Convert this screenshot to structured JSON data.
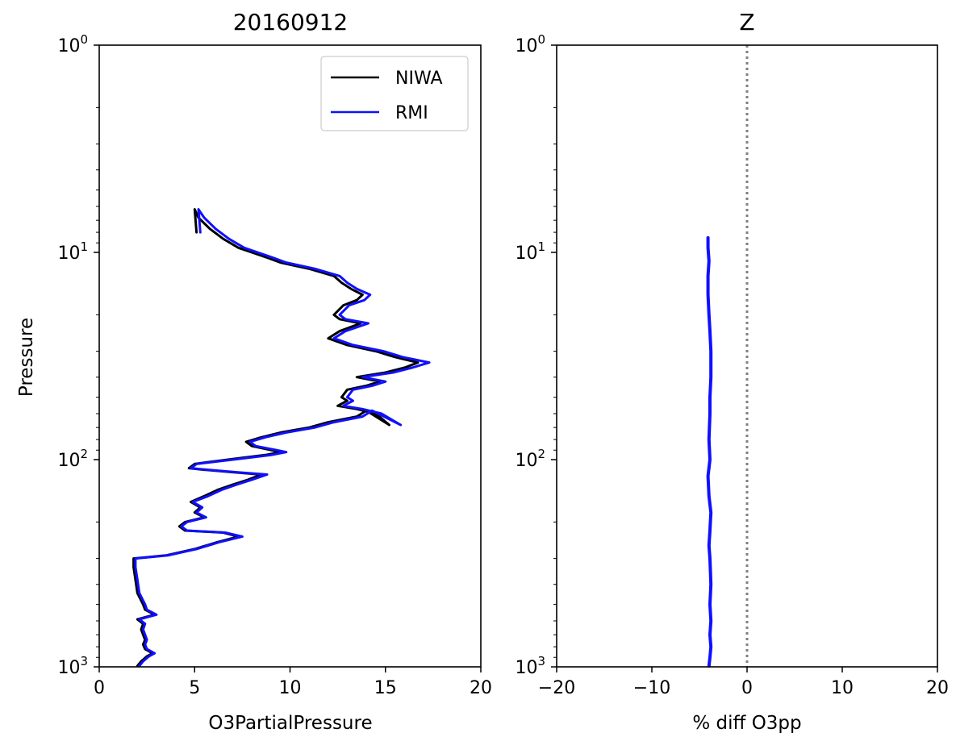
{
  "chart_data": [
    {
      "type": "line",
      "title": "20160912",
      "xlabel": "O3PartialPressure",
      "ylabel": "Pressure",
      "xlim": [
        0,
        20
      ],
      "ylim": [
        1000,
        1
      ],
      "yscale": "log",
      "xticks": [
        "0",
        "5",
        "10",
        "15",
        "20"
      ],
      "yticks": [
        {
          "base": "10",
          "exp": "0"
        },
        {
          "base": "10",
          "exp": "1"
        },
        {
          "base": "10",
          "exp": "2"
        },
        {
          "base": "10",
          "exp": "3"
        }
      ],
      "legend_position": "top-right",
      "series": [
        {
          "name": "NIWA",
          "color": "#000000",
          "points": [
            [
              2.0,
              990
            ],
            [
              2.2,
              940
            ],
            [
              2.5,
              890
            ],
            [
              2.8,
              860
            ],
            [
              2.4,
              820
            ],
            [
              2.3,
              780
            ],
            [
              2.4,
              740
            ],
            [
              2.3,
              700
            ],
            [
              2.2,
              660
            ],
            [
              2.3,
              620
            ],
            [
              2.0,
              590
            ],
            [
              2.9,
              560
            ],
            [
              2.4,
              530
            ],
            [
              2.3,
              500
            ],
            [
              2.0,
              440
            ],
            [
              1.9,
              380
            ],
            [
              1.8,
              330
            ],
            [
              1.8,
              300
            ],
            [
              3.5,
              290
            ],
            [
              5.0,
              270
            ],
            [
              6.2,
              250
            ],
            [
              7.3,
              235
            ],
            [
              6.5,
              225
            ],
            [
              4.5,
              220
            ],
            [
              4.2,
              210
            ],
            [
              4.5,
              200
            ],
            [
              5.5,
              190
            ],
            [
              5.0,
              180
            ],
            [
              5.3,
              170
            ],
            [
              4.8,
              160
            ],
            [
              5.5,
              150
            ],
            [
              6.2,
              140
            ],
            [
              7.0,
              132
            ],
            [
              7.8,
              125
            ],
            [
              8.5,
              118
            ],
            [
              7.0,
              115
            ],
            [
              5.5,
              112
            ],
            [
              4.7,
              110
            ],
            [
              5.0,
              105
            ],
            [
              6.0,
              102
            ],
            [
              7.5,
              98
            ],
            [
              8.7,
              95
            ],
            [
              9.5,
              92
            ],
            [
              9.0,
              90
            ],
            [
              8.0,
              86
            ],
            [
              7.7,
              82
            ],
            [
              8.5,
              78
            ],
            [
              9.5,
              74
            ],
            [
              11.0,
              70
            ],
            [
              12.0,
              66
            ],
            [
              13.5,
              62
            ],
            [
              14.0,
              58
            ],
            [
              15.2,
              68
            ],
            [
              14.5,
              60
            ],
            [
              13.5,
              57
            ],
            [
              12.5,
              55
            ],
            [
              13.0,
              52
            ],
            [
              12.7,
              50
            ],
            [
              13.0,
              46
            ],
            [
              14.0,
              44
            ],
            [
              14.7,
              42
            ],
            [
              13.5,
              40
            ],
            [
              15.0,
              38
            ],
            [
              16.0,
              36
            ],
            [
              16.7,
              34
            ],
            [
              15.5,
              32
            ],
            [
              14.5,
              30
            ],
            [
              13.0,
              28
            ],
            [
              12.0,
              26
            ],
            [
              12.6,
              24
            ],
            [
              13.7,
              22
            ],
            [
              12.6,
              21
            ],
            [
              12.3,
              20
            ],
            [
              12.8,
              18
            ],
            [
              13.5,
              17
            ],
            [
              13.8,
              16
            ],
            [
              13.2,
              15
            ],
            [
              12.7,
              14
            ],
            [
              12.3,
              13
            ],
            [
              11.0,
              12
            ],
            [
              9.5,
              11.2
            ],
            [
              8.8,
              10.6
            ],
            [
              7.3,
              9.5
            ],
            [
              6.5,
              8.6
            ],
            [
              5.8,
              7.7
            ],
            [
              5.2,
              6.8
            ],
            [
              5.0,
              6.2
            ],
            [
              5.1,
              8.0
            ]
          ]
        },
        {
          "name": "RMI",
          "color": "#1010ff",
          "points": [
            [
              2.1,
              990
            ],
            [
              2.3,
              940
            ],
            [
              2.6,
              890
            ],
            [
              2.9,
              860
            ],
            [
              2.5,
              820
            ],
            [
              2.4,
              780
            ],
            [
              2.5,
              740
            ],
            [
              2.4,
              700
            ],
            [
              2.3,
              660
            ],
            [
              2.4,
              620
            ],
            [
              2.1,
              590
            ],
            [
              3.0,
              560
            ],
            [
              2.5,
              530
            ],
            [
              2.4,
              500
            ],
            [
              2.1,
              440
            ],
            [
              2.0,
              380
            ],
            [
              1.9,
              330
            ],
            [
              1.9,
              300
            ],
            [
              3.6,
              290
            ],
            [
              5.1,
              270
            ],
            [
              6.3,
              250
            ],
            [
              7.5,
              235
            ],
            [
              6.6,
              225
            ],
            [
              4.6,
              220
            ],
            [
              4.3,
              210
            ],
            [
              4.6,
              200
            ],
            [
              5.6,
              190
            ],
            [
              5.1,
              180
            ],
            [
              5.4,
              170
            ],
            [
              4.9,
              160
            ],
            [
              5.7,
              150
            ],
            [
              6.4,
              140
            ],
            [
              7.2,
              132
            ],
            [
              8.0,
              125
            ],
            [
              8.8,
              118
            ],
            [
              7.2,
              115
            ],
            [
              5.7,
              112
            ],
            [
              4.8,
              110
            ],
            [
              5.1,
              105
            ],
            [
              6.2,
              102
            ],
            [
              7.8,
              98
            ],
            [
              9.0,
              95
            ],
            [
              9.8,
              92
            ],
            [
              9.3,
              90
            ],
            [
              8.2,
              86
            ],
            [
              7.9,
              82
            ],
            [
              8.7,
              78
            ],
            [
              9.8,
              74
            ],
            [
              11.3,
              70
            ],
            [
              12.3,
              66
            ],
            [
              13.8,
              62
            ],
            [
              14.3,
              58
            ],
            [
              15.8,
              68
            ],
            [
              14.8,
              60
            ],
            [
              13.8,
              57
            ],
            [
              12.8,
              55
            ],
            [
              13.3,
              52
            ],
            [
              13.0,
              50
            ],
            [
              13.3,
              46
            ],
            [
              14.3,
              44
            ],
            [
              15.0,
              42
            ],
            [
              13.8,
              40
            ],
            [
              15.4,
              38
            ],
            [
              16.4,
              36
            ],
            [
              17.3,
              34
            ],
            [
              15.9,
              32
            ],
            [
              14.9,
              30
            ],
            [
              13.3,
              28
            ],
            [
              12.3,
              26
            ],
            [
              12.9,
              24
            ],
            [
              14.1,
              22
            ],
            [
              12.9,
              21
            ],
            [
              12.6,
              20
            ],
            [
              13.1,
              18
            ],
            [
              13.9,
              17
            ],
            [
              14.2,
              16
            ],
            [
              13.5,
              15
            ],
            [
              13.0,
              14
            ],
            [
              12.6,
              13
            ],
            [
              11.3,
              12
            ],
            [
              9.8,
              11.2
            ],
            [
              9.1,
              10.6
            ],
            [
              7.6,
              9.5
            ],
            [
              6.8,
              8.6
            ],
            [
              6.1,
              7.7
            ],
            [
              5.5,
              6.8
            ],
            [
              5.2,
              6.2
            ],
            [
              5.3,
              8.0
            ]
          ]
        }
      ]
    },
    {
      "type": "line",
      "title": "Z",
      "xlabel": "% diff O3pp",
      "ylabel": "",
      "xlim": [
        -20,
        20
      ],
      "ylim": [
        1000,
        1
      ],
      "yscale": "log",
      "xticks": [
        "−20",
        "−10",
        "0",
        "10",
        "20"
      ],
      "yticks": [
        {
          "base": "10",
          "exp": "0"
        },
        {
          "base": "10",
          "exp": "1"
        },
        {
          "base": "10",
          "exp": "2"
        },
        {
          "base": "10",
          "exp": "3"
        }
      ],
      "reference_line": {
        "x": 0,
        "style": "dotted",
        "color": "#808080"
      },
      "series": [
        {
          "color": "#1010ff",
          "points": [
            [
              -4.0,
              990
            ],
            [
              -3.9,
              900
            ],
            [
              -3.8,
              800
            ],
            [
              -3.9,
              700
            ],
            [
              -3.8,
              600
            ],
            [
              -3.9,
              500
            ],
            [
              -3.8,
              400
            ],
            [
              -3.9,
              300
            ],
            [
              -4.0,
              260
            ],
            [
              -3.9,
              220
            ],
            [
              -3.8,
              180
            ],
            [
              -4.0,
              150
            ],
            [
              -4.1,
              120
            ],
            [
              -3.9,
              100
            ],
            [
              -4.0,
              80
            ],
            [
              -3.9,
              60
            ],
            [
              -3.9,
              50
            ],
            [
              -3.8,
              40
            ],
            [
              -3.8,
              30
            ],
            [
              -3.9,
              24
            ],
            [
              -4.0,
              20
            ],
            [
              -4.1,
              16
            ],
            [
              -4.1,
              13
            ],
            [
              -4.0,
              11
            ],
            [
              -4.1,
              9.5
            ],
            [
              -4.1,
              8.5
            ]
          ]
        }
      ]
    }
  ]
}
